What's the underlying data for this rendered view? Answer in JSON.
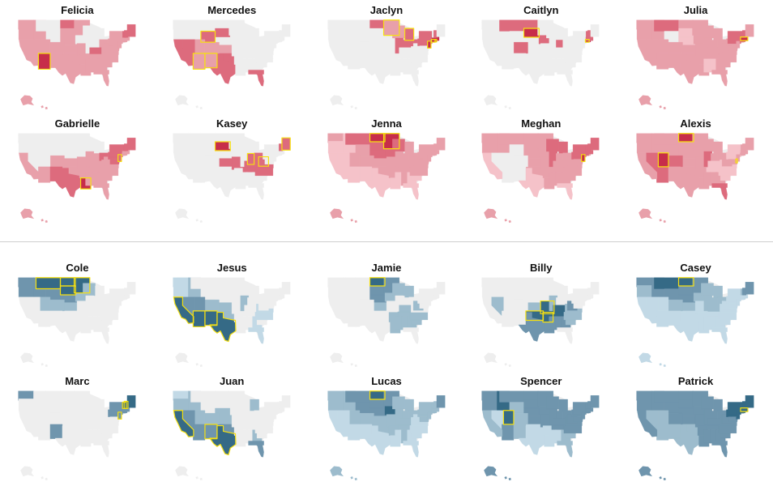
{
  "sections": [
    {
      "name": "female-names",
      "palette": {
        "none": "#eeeeee",
        "light": "#f5c2c9",
        "mid": "#e8a0aa",
        "strong": "#dd6b7d",
        "top": "#c72d4a"
      },
      "highlight": "#f6e010",
      "panels": [
        {
          "name": "Felicia",
          "base": "mid",
          "lacks": [
            "MT",
            "WY",
            "IA",
            "IL",
            "MI",
            "WI",
            "IN"
          ],
          "strong": [
            "ND",
            "KY",
            "ME",
            "VT",
            "NH"
          ],
          "top": [
            "AZ"
          ],
          "highlight": [
            "AZ"
          ]
        },
        {
          "name": "Mercedes",
          "base": "none",
          "states": {
            "CA": "strong",
            "NV": "strong",
            "WY": "strong",
            "NM": "mid",
            "AZ": "mid",
            "UT": "mid",
            "CO": "mid",
            "TX": "strong",
            "OK": "strong",
            "KS": "mid",
            "FL": "strong",
            "SD": "strong"
          },
          "highlight": [
            "AZ",
            "NM",
            "WY"
          ]
        },
        {
          "name": "Jaclyn",
          "base": "none",
          "states": {
            "MN": "mid",
            "WI": "mid",
            "MI": "strong",
            "IL": "strong",
            "IN": "strong",
            "OH": "strong",
            "PA": "strong",
            "NY": "strong",
            "NJ": "top",
            "CT": "top",
            "MA": "top",
            "RI": "top",
            "NH": "strong",
            "ND": "strong"
          },
          "highlight": [
            "MI",
            "MN",
            "NJ",
            "CT",
            "RI"
          ]
        },
        {
          "name": "Caitlyn",
          "base": "none",
          "states": {
            "SD": "top",
            "ND": "strong",
            "MT": "strong",
            "CO": "strong",
            "IA": "strong",
            "IN": "strong",
            "NH": "strong",
            "VT": "strong",
            "CT": "top",
            "RI": "top",
            "MA": "strong"
          },
          "highlight": [
            "SD",
            "CT"
          ]
        },
        {
          "name": "Julia",
          "base": "mid",
          "lacks": [
            "WY"
          ],
          "states": {
            "SD": "light",
            "NE": "light",
            "MS": "light",
            "AL": "light",
            "MT": "strong",
            "NY": "strong",
            "MA": "top",
            "RI": "strong",
            "CT": "strong",
            "NH": "strong",
            "VT": "strong"
          },
          "highlight": [
            "MA"
          ]
        },
        {
          "name": "Gabrielle",
          "base": "mid",
          "lacks": [
            "WA",
            "OR",
            "MT",
            "ID",
            "WY",
            "ND",
            "SD",
            "NE",
            "IA",
            "MN",
            "WI",
            "MI",
            "NV",
            "UT"
          ],
          "strong": [
            "NM",
            "TX",
            "OH",
            "PA",
            "MD",
            "NJ",
            "DE",
            "NY",
            "VT",
            "NH",
            "ME"
          ],
          "top": [
            "LA"
          ],
          "highlight": [
            "LA",
            "NJ"
          ]
        },
        {
          "name": "Kasey",
          "base": "none",
          "states": {
            "SD": "top",
            "KS": "strong",
            "MO": "strong",
            "KY": "strong",
            "WV": "strong",
            "VA": "strong",
            "NC": "strong",
            "TN": "strong",
            "OH": "strong",
            "IN": "strong",
            "ME": "strong",
            "NH": "strong"
          },
          "highlight": [
            "SD",
            "ME",
            "IN",
            "WV"
          ]
        },
        {
          "name": "Jenna",
          "base": "mid",
          "states": {
            "OR": "light",
            "CA": "light",
            "NV": "light",
            "ID": "light",
            "AZ": "light",
            "NM": "light",
            "TX": "light",
            "FL": "light",
            "GA": "light",
            "SC": "light",
            "LA": "light",
            "MS": "light",
            "MT": "strong",
            "SD": "strong",
            "ND": "top",
            "MN": "top",
            "IA": "strong",
            "WI": "strong",
            "NE": "strong"
          },
          "highlight": [
            "ND",
            "MN"
          ]
        },
        {
          "name": "Meghan",
          "base": "mid",
          "lacks": [
            "NV",
            "UT",
            "AZ",
            "NM",
            "WY",
            "CO"
          ],
          "states": {
            "TX": "light",
            "FL": "light",
            "CA": "light",
            "WI": "strong",
            "MI": "strong",
            "IL": "strong",
            "NY": "strong",
            "PA": "strong",
            "NJ": "top",
            "CT": "strong",
            "MA": "strong",
            "VT": "strong",
            "NH": "strong",
            "ME": "strong"
          },
          "highlight": [
            "NJ"
          ]
        },
        {
          "name": "Alexis",
          "base": "mid",
          "states": {
            "ND": "top",
            "UT": "top",
            "AZ": "strong",
            "NV": "strong",
            "CO": "strong",
            "IL": "strong",
            "FL": "strong",
            "VA": "light",
            "KY": "light",
            "TN": "light",
            "NC": "light",
            "SC": "light",
            "PA": "light",
            "NY": "light"
          },
          "highlight": [
            "UT",
            "ND",
            "DE"
          ]
        }
      ]
    },
    {
      "name": "male-names",
      "palette": {
        "none": "#eeeeee",
        "light": "#c2d9e6",
        "mid": "#9dbccd",
        "strong": "#6f95ad",
        "top": "#356a86"
      },
      "highlight": "#f6e010",
      "panels": [
        {
          "name": "Cole",
          "base": "none",
          "states": {
            "WA": "strong",
            "OR": "strong",
            "ID": "strong",
            "MT": "top",
            "WY": "strong",
            "ND": "top",
            "SD": "top",
            "NE": "strong",
            "MN": "top",
            "IA": "mid",
            "KS": "mid",
            "CO": "mid",
            "UT": "mid",
            "WI": "mid"
          },
          "highlight": [
            "MT",
            "ND",
            "SD",
            "MN"
          ]
        },
        {
          "name": "Jesus",
          "base": "none",
          "states": {
            "WA": "light",
            "OR": "light",
            "CA": "top",
            "NV": "strong",
            "AZ": "top",
            "NM": "top",
            "TX": "top",
            "UT": "strong",
            "CO": "mid",
            "ID": "mid",
            "OK": "mid",
            "KS": "mid",
            "IL": "mid",
            "FL": "light",
            "GA": "light",
            "NC": "light",
            "VA": "light"
          },
          "highlight": [
            "CA",
            "AZ",
            "NM",
            "TX"
          ]
        },
        {
          "name": "Jamie",
          "base": "none",
          "states": {
            "ND": "top",
            "SD": "strong",
            "NE": "strong",
            "MN": "strong",
            "IA": "mid",
            "WI": "mid",
            "KS": "mid",
            "WV": "mid",
            "KY": "mid",
            "TN": "mid",
            "AL": "mid",
            "GA": "mid",
            "SC": "mid",
            "NC": "mid",
            "LA": "mid",
            "MS": "mid",
            "AR": "mid",
            "MI": "mid"
          },
          "highlight": [
            "ND"
          ]
        },
        {
          "name": "Billy",
          "base": "none",
          "states": {
            "NV": "mid",
            "OK": "top",
            "AR": "top",
            "MO": "top",
            "KY": "top",
            "TN": "top",
            "WV": "strong",
            "TX": "strong",
            "LA": "strong",
            "MS": "strong",
            "AL": "strong",
            "GA": "strong",
            "KS": "mid",
            "VA": "mid",
            "NC": "mid",
            "SC": "mid",
            "IL": "mid"
          },
          "highlight": [
            "OK",
            "AR",
            "MO"
          ]
        },
        {
          "name": "Casey",
          "base": "light",
          "states": {
            "MT": "top",
            "ND": "top",
            "SD": "strong",
            "WY": "strong",
            "ID": "strong",
            "WA": "strong",
            "OR": "mid",
            "NE": "strong",
            "MN": "strong",
            "IA": "mid",
            "KS": "mid",
            "CO": "mid",
            "WI": "mid",
            "IL": "mid",
            "IN": "mid",
            "OH": "mid",
            "MI": "mid",
            "KY": "mid",
            "NH": "strong",
            "VT": "mid",
            "ME": "strong"
          },
          "highlight": [
            "ND"
          ]
        },
        {
          "name": "Marc",
          "base": "none",
          "states": {
            "WA": "strong",
            "NM": "strong",
            "NY": "strong",
            "VT": "top",
            "NH": "top",
            "ME": "top",
            "MA": "strong",
            "CT": "strong",
            "RI": "strong",
            "NJ": "strong",
            "PA": "strong"
          },
          "highlight": [
            "VT",
            "NH",
            "NJ"
          ]
        },
        {
          "name": "Juan",
          "base": "none",
          "states": {
            "WA": "light",
            "OR": "mid",
            "CA": "top",
            "NV": "strong",
            "ID": "mid",
            "UT": "mid",
            "AZ": "strong",
            "NM": "strong",
            "TX": "top",
            "CO": "mid",
            "NE": "mid",
            "KS": "mid",
            "OK": "strong",
            "MI": "mid",
            "FL": "strong",
            "GA": "mid"
          },
          "highlight": [
            "CA",
            "TX",
            "NM"
          ]
        },
        {
          "name": "Lucas",
          "base": "mid",
          "states": {
            "CA": "light",
            "NV": "light",
            "AZ": "light",
            "NM": "light",
            "TX": "light",
            "LA": "light",
            "MS": "light",
            "FL": "light",
            "GA": "light",
            "SC": "light",
            "NC": "light",
            "VA": "light",
            "WV": "light",
            "ND": "top",
            "SD": "strong",
            "MN": "strong",
            "IA": "top",
            "NE": "strong",
            "MT": "strong",
            "WY": "strong",
            "ME": "strong"
          },
          "highlight": [
            "ND"
          ]
        },
        {
          "name": "Spencer",
          "base": "strong",
          "states": {
            "UT": "top",
            "ID": "top",
            "CA": "mid",
            "TX": "light",
            "OK": "light",
            "AR": "light",
            "LA": "light",
            "MS": "light",
            "AL": "light",
            "FL": "mid",
            "GA": "mid",
            "SC": "mid",
            "NM": "mid",
            "NV": "light",
            "WY": "mid",
            "CO": "mid"
          },
          "highlight": [
            "UT"
          ]
        },
        {
          "name": "Patrick",
          "base": "strong",
          "states": {
            "NV": "mid",
            "OK": "mid",
            "TX": "mid",
            "NM": "mid",
            "AZ": "mid",
            "UT": "mid",
            "ME": "top",
            "NH": "top",
            "VT": "top",
            "MA": "top",
            "CT": "top",
            "RI": "top",
            "NY": "top",
            "NJ": "top",
            "PA": "top"
          },
          "highlight": [
            "MA"
          ]
        }
      ]
    }
  ]
}
